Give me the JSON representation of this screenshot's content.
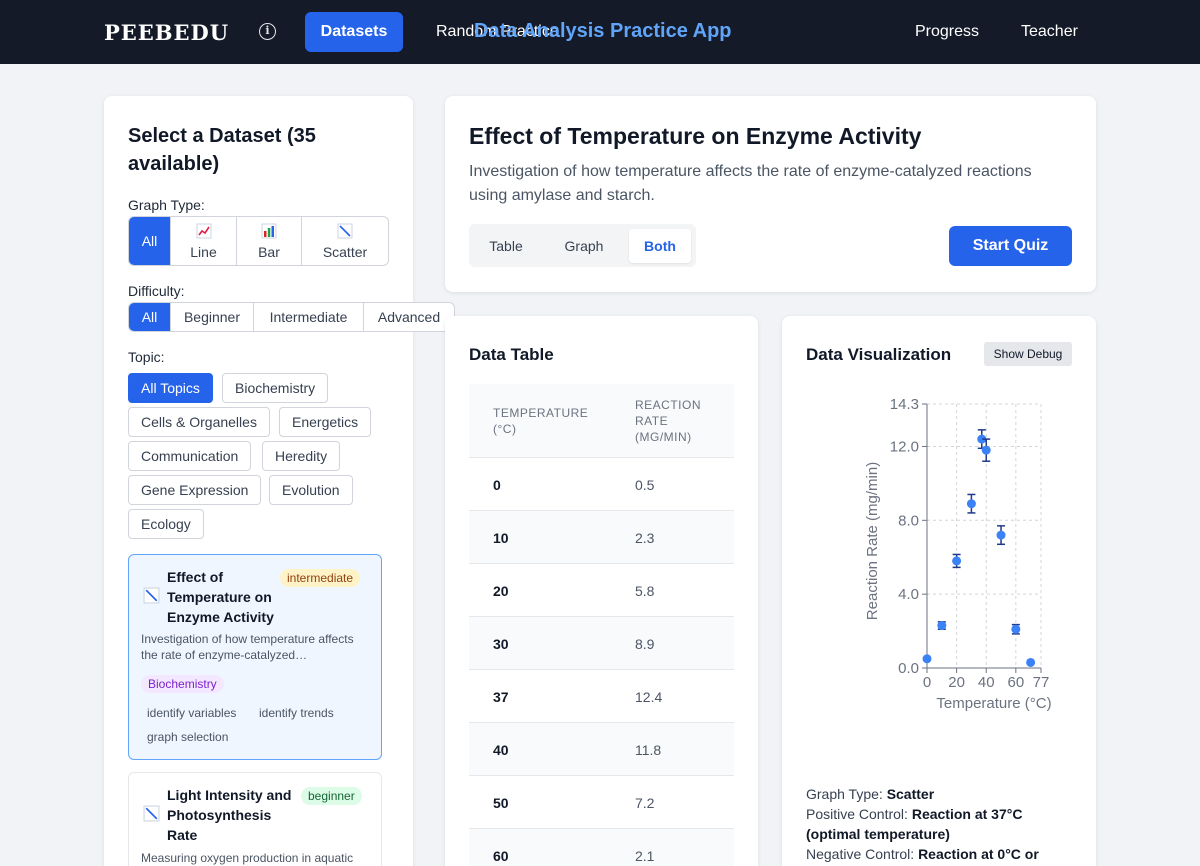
{
  "nav": {
    "logo": "PEEBEDU",
    "datasets": "Datasets",
    "random": "Random Practice",
    "app_title": "Data Analysis Practice App",
    "progress": "Progress",
    "teacher": "Teacher"
  },
  "sidebar": {
    "title": "Select a Dataset (35 available)",
    "graph_type_label": "Graph Type:",
    "graph_types": [
      {
        "label": "All",
        "icon": ""
      },
      {
        "label": "Line",
        "icon": "line-chart-icon"
      },
      {
        "label": "Bar",
        "icon": "bar-chart-icon"
      },
      {
        "label": "Scatter",
        "icon": "scatter-icon"
      }
    ],
    "difficulty_label": "Difficulty:",
    "difficulties": [
      "All",
      "Beginner",
      "Intermediate",
      "Advanced"
    ],
    "topic_label": "Topic:",
    "topics": [
      "All Topics",
      "Biochemistry",
      "Cells & Organelles",
      "Energetics",
      "Communication",
      "Heredity",
      "Gene Expression",
      "Evolution",
      "Ecology"
    ],
    "datasets": [
      {
        "title": "Effect of Temperature on Enzyme Activity",
        "difficulty": "intermediate",
        "description": "Investigation of how temperature affects the rate of enzyme-catalyzed…",
        "topic": "Biochemistry",
        "skills": [
          "identify variables",
          "identify trends",
          "graph selection"
        ]
      },
      {
        "title": "Light Intensity and Photosynthesis Rate",
        "difficulty": "beginner",
        "description": "Measuring oxygen production in aquatic"
      }
    ]
  },
  "header": {
    "title": "Effect of Temperature on Enzyme Activity",
    "description": "Investigation of how temperature affects the rate of enzyme-catalyzed reactions using amylase and starch.",
    "views": [
      "Table",
      "Graph",
      "Both"
    ],
    "active_view": "Both",
    "start_quiz": "Start Quiz"
  },
  "table": {
    "title": "Data Table",
    "col1_line1": "TEMPERATURE",
    "col1_line2": "(°C)",
    "col2_line1": "REACTION",
    "col2_line2": "RATE",
    "col2_line3": "(MG/MIN)",
    "rows": [
      [
        "0",
        "0.5"
      ],
      [
        "10",
        "2.3"
      ],
      [
        "20",
        "5.8"
      ],
      [
        "30",
        "8.9"
      ],
      [
        "37",
        "12.4"
      ],
      [
        "40",
        "11.8"
      ],
      [
        "50",
        "7.2"
      ],
      [
        "60",
        "2.1"
      ]
    ]
  },
  "viz": {
    "title": "Data Visualization",
    "debug": "Show Debug",
    "graph_type_label": "Graph Type:",
    "graph_type_value": "Scatter",
    "positive_label": "Positive Control:",
    "positive_value": "Reaction at 37°C (optimal temperature)",
    "negative_label": "Negative Control:",
    "negative_value": "Reaction at 0°C or"
  },
  "chart_data": {
    "type": "scatter",
    "xlabel": "Temperature (°C)",
    "ylabel": "Reaction Rate (mg/min)",
    "xlim": [
      0,
      77
    ],
    "ylim": [
      0,
      14.3
    ],
    "x_ticks": [
      "0",
      "20",
      "40",
      "60",
      "77"
    ],
    "y_ticks": [
      "0.0",
      "4.0",
      "8.0",
      "12.0",
      "14.3"
    ],
    "grid": true,
    "point_color": "#3b82f6",
    "points": [
      {
        "x": 0,
        "y": 0.5,
        "err": 0
      },
      {
        "x": 10,
        "y": 2.3,
        "err": 0.2
      },
      {
        "x": 20,
        "y": 5.8,
        "err": 0.35
      },
      {
        "x": 30,
        "y": 8.9,
        "err": 0.5
      },
      {
        "x": 37,
        "y": 12.4,
        "err": 0.5
      },
      {
        "x": 40,
        "y": 11.8,
        "err": 0.6
      },
      {
        "x": 50,
        "y": 7.2,
        "err": 0.5
      },
      {
        "x": 60,
        "y": 2.1,
        "err": 0.25
      },
      {
        "x": 70,
        "y": 0.3,
        "err": 0
      }
    ]
  }
}
